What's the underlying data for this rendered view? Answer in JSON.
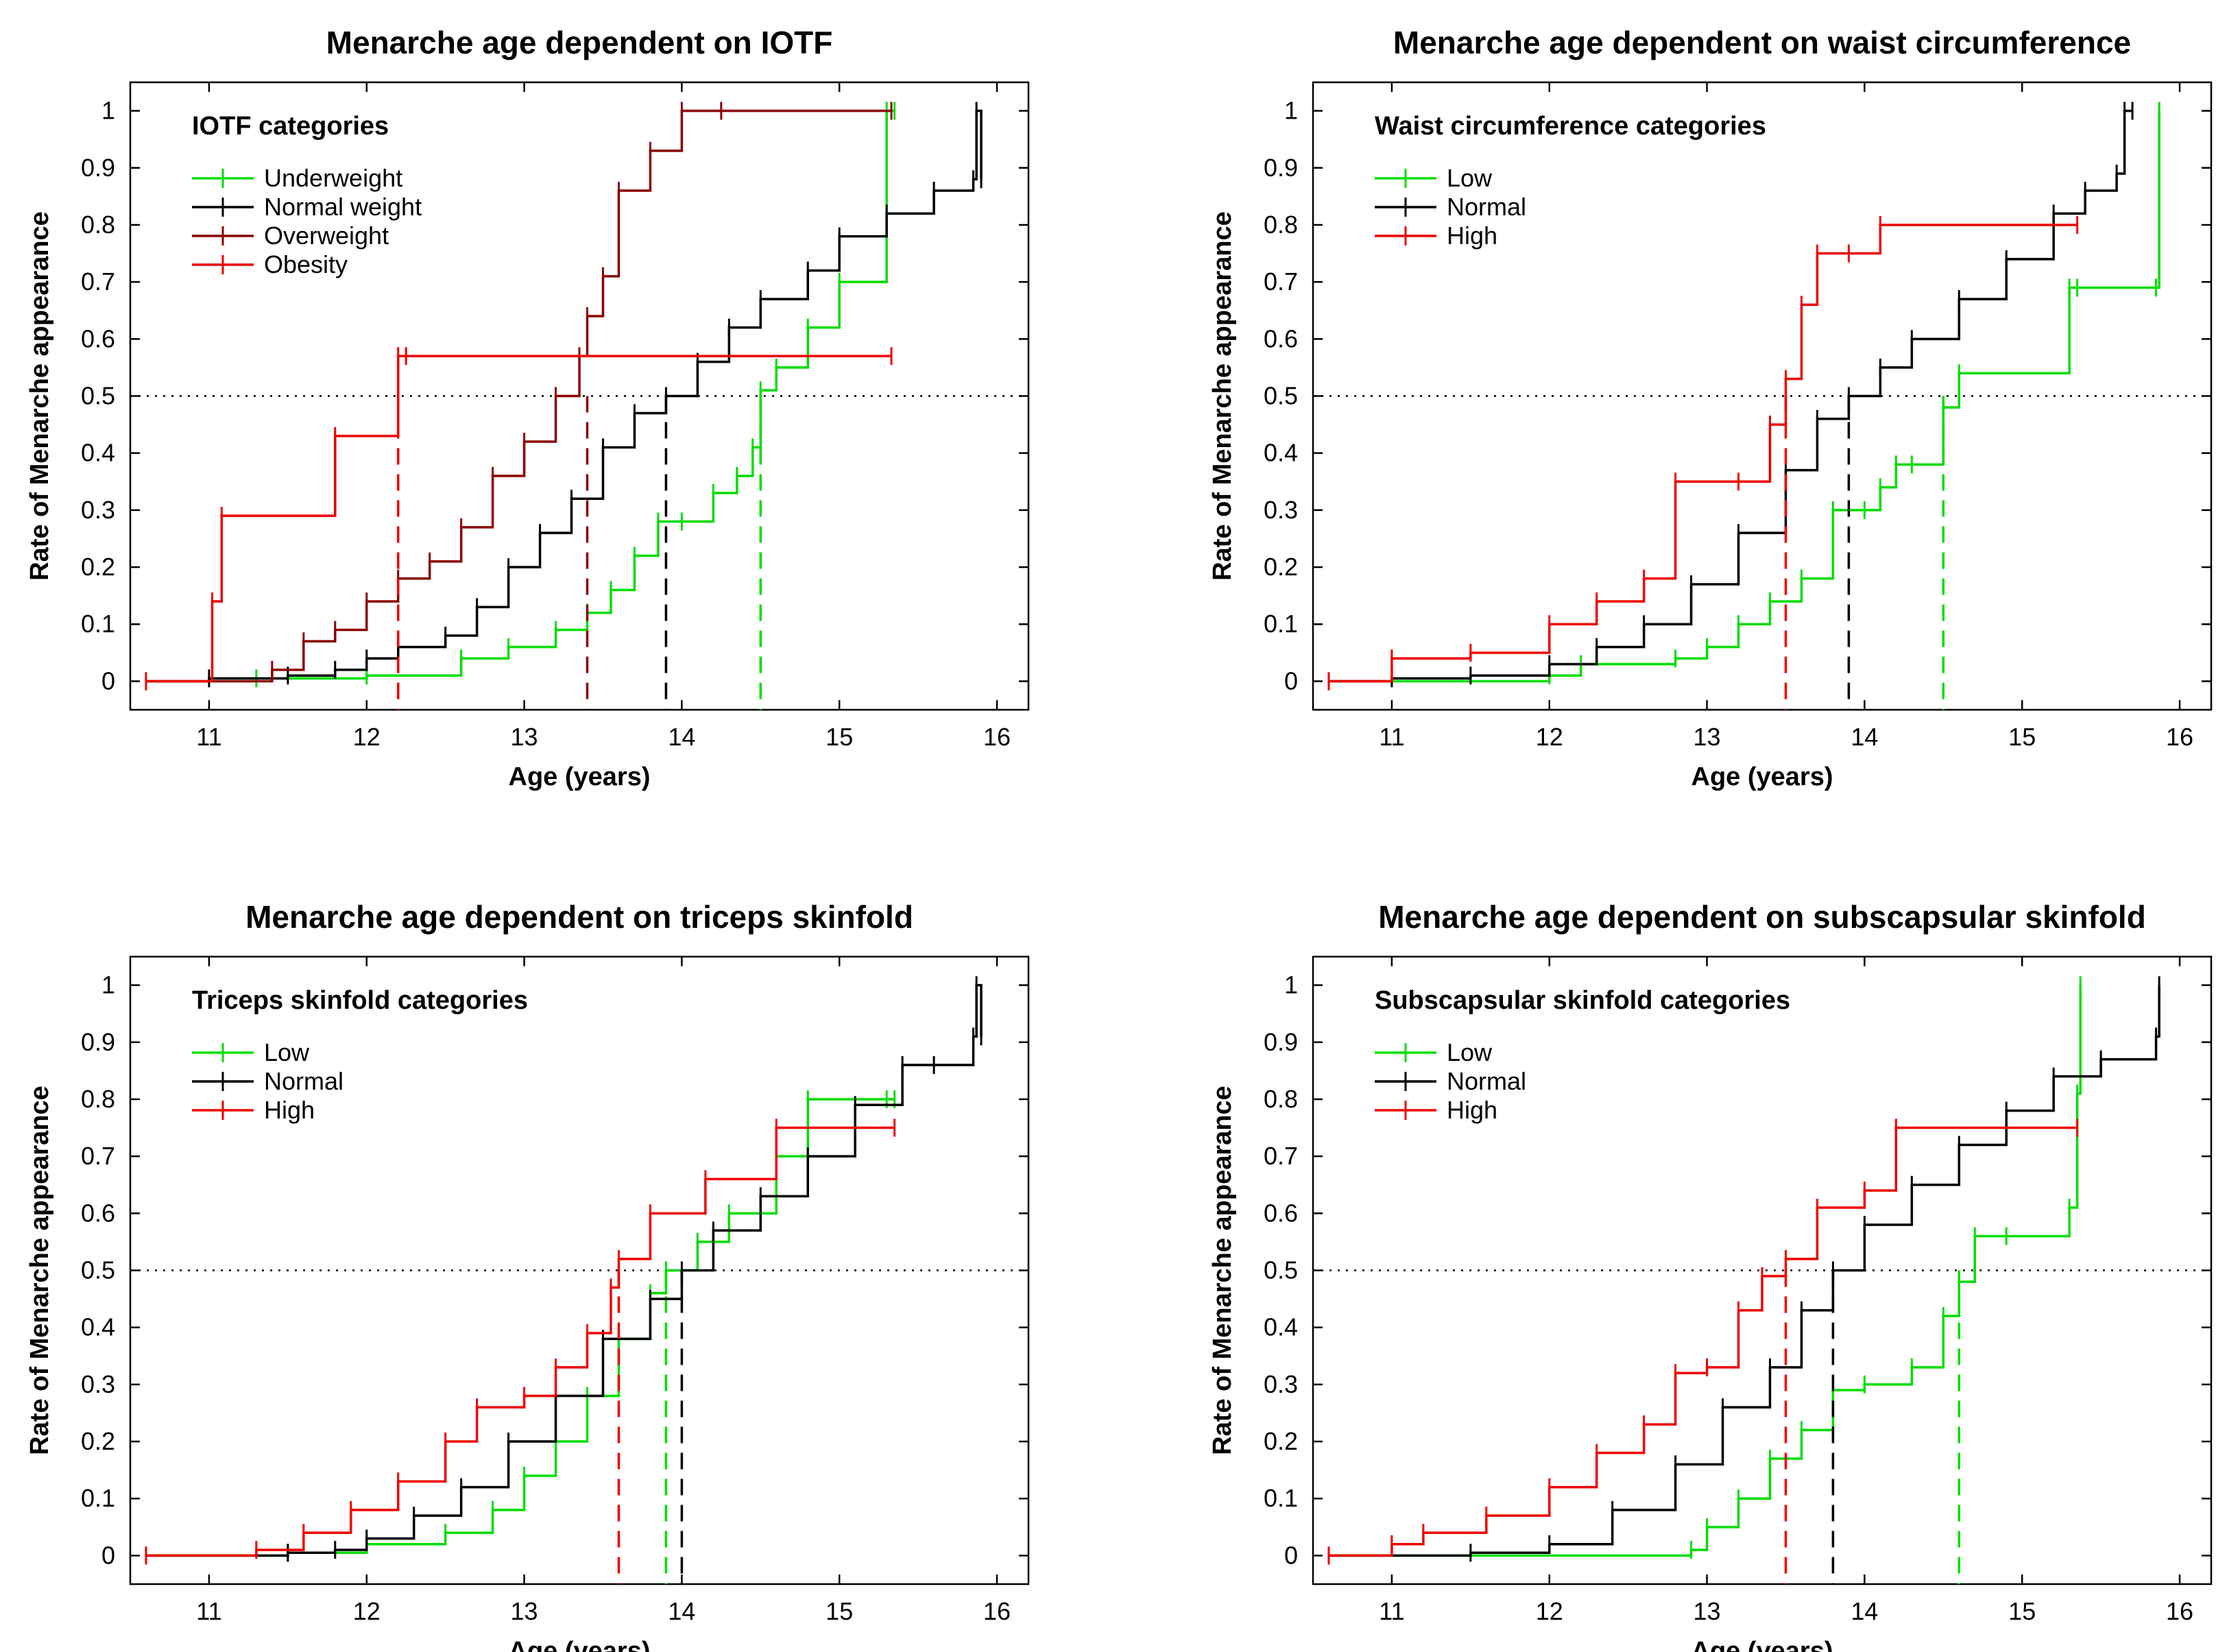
{
  "colors": {
    "low": "#00dd00",
    "normal": "#000000",
    "high": "#ee0000",
    "overweight": "#8b0000",
    "obesity": "#ee0000",
    "underweight": "#00dd00",
    "reference_line": "#000000"
  },
  "chart_data": [
    {
      "type": "line",
      "subtype": "kaplan-meier step curves",
      "title": "Menarche age dependent on IOTF",
      "xlabel": "Age (years)",
      "ylabel": "Rate of Menarche appearance",
      "xlim": [
        10.5,
        16.2
      ],
      "ylim": [
        -0.05,
        1.05
      ],
      "xticks": [
        11,
        12,
        13,
        14,
        15,
        16
      ],
      "xtick_labels": [
        "11",
        "12",
        "13",
        "14",
        "15",
        "16"
      ],
      "yticks": [
        0,
        0.1,
        0.2,
        0.3,
        0.4,
        0.5,
        0.6,
        0.7,
        0.8,
        0.9,
        1
      ],
      "ytick_labels": [
        "0",
        "0.1",
        "0.2",
        "0.3",
        "0.4",
        "0.5",
        "0.6",
        "0.7",
        "0.8",
        "0.9",
        "1"
      ],
      "reference_y": 0.5,
      "legend_title": "IOTF categories",
      "legend_position": "top-left",
      "series": [
        {
          "name": "Underweight",
          "color_key": "underweight",
          "median_age": 14.5,
          "x": [
            10.6,
            11.3,
            12.0,
            12.6,
            12.9,
            13.2,
            13.4,
            13.55,
            13.7,
            13.85,
            14.0,
            14.2,
            14.35,
            14.45,
            14.5,
            14.6,
            14.8,
            15.0,
            15.3,
            15.35
          ],
          "y": [
            0,
            0.005,
            0.01,
            0.04,
            0.06,
            0.09,
            0.12,
            0.16,
            0.22,
            0.28,
            0.28,
            0.33,
            0.36,
            0.41,
            0.51,
            0.55,
            0.62,
            0.7,
            1.0,
            1.0
          ]
        },
        {
          "name": "Normal weight",
          "color_key": "normal",
          "median_age": 13.9,
          "x": [
            10.6,
            11.0,
            11.5,
            11.8,
            12.0,
            12.2,
            12.5,
            12.7,
            12.9,
            13.1,
            13.3,
            13.5,
            13.7,
            13.9,
            14.1,
            14.3,
            14.5,
            14.8,
            15.0,
            15.3,
            15.6,
            15.85,
            15.87,
            15.9
          ],
          "y": [
            0,
            0.005,
            0.01,
            0.02,
            0.04,
            0.06,
            0.08,
            0.13,
            0.2,
            0.26,
            0.32,
            0.41,
            0.47,
            0.5,
            0.56,
            0.62,
            0.67,
            0.72,
            0.78,
            0.82,
            0.86,
            0.88,
            1.0,
            0.88
          ]
        },
        {
          "name": "Overweight",
          "color_key": "overweight",
          "median_age": 13.4,
          "x": [
            10.6,
            11.4,
            11.6,
            11.8,
            12.0,
            12.2,
            12.4,
            12.6,
            12.8,
            13.0,
            13.2,
            13.35,
            13.4,
            13.5,
            13.6,
            13.8,
            14.0,
            14.25,
            15.33
          ],
          "y": [
            0,
            0.02,
            0.07,
            0.09,
            0.14,
            0.18,
            0.21,
            0.27,
            0.36,
            0.42,
            0.5,
            0.57,
            0.64,
            0.71,
            0.86,
            0.93,
            1.0,
            1.0,
            1.0
          ]
        },
        {
          "name": "Obesity",
          "color_key": "obesity",
          "median_age": 12.2,
          "x": [
            10.6,
            11.02,
            11.08,
            11.8,
            12.2,
            12.25,
            15.33
          ],
          "y": [
            0,
            0.14,
            0.29,
            0.43,
            0.57,
            0.57,
            0.57
          ]
        }
      ]
    },
    {
      "type": "line",
      "subtype": "kaplan-meier step curves",
      "title": "Menarche age dependent on waist circumference",
      "xlabel": "Age (years)",
      "ylabel": "Rate of Menarche appearance",
      "xlim": [
        10.5,
        16.2
      ],
      "ylim": [
        -0.05,
        1.05
      ],
      "xticks": [
        11,
        12,
        13,
        14,
        15,
        16
      ],
      "xtick_labels": [
        "11",
        "12",
        "13",
        "14",
        "15",
        "16"
      ],
      "yticks": [
        0,
        0.1,
        0.2,
        0.3,
        0.4,
        0.5,
        0.6,
        0.7,
        0.8,
        0.9,
        1
      ],
      "ytick_labels": [
        "0",
        "0.1",
        "0.2",
        "0.3",
        "0.4",
        "0.5",
        "0.6",
        "0.7",
        "0.8",
        "0.9",
        "1"
      ],
      "reference_y": 0.5,
      "legend_title": "Waist circumference categories",
      "legend_position": "top-left",
      "series": [
        {
          "name": "Low",
          "color_key": "low",
          "median_age": 14.5,
          "x": [
            10.6,
            12.0,
            12.2,
            12.8,
            13.0,
            13.2,
            13.4,
            13.6,
            13.8,
            14.0,
            14.1,
            14.2,
            14.3,
            14.5,
            14.6,
            15.3,
            15.35,
            15.85,
            15.87
          ],
          "y": [
            0,
            0.01,
            0.03,
            0.04,
            0.06,
            0.1,
            0.14,
            0.18,
            0.3,
            0.3,
            0.34,
            0.38,
            0.38,
            0.48,
            0.54,
            0.69,
            0.69,
            0.69,
            1.0
          ]
        },
        {
          "name": "Normal",
          "color_key": "normal",
          "median_age": 13.9,
          "x": [
            10.6,
            11.0,
            11.5,
            12.0,
            12.3,
            12.6,
            12.9,
            13.2,
            13.5,
            13.7,
            13.9,
            14.1,
            14.3,
            14.6,
            14.9,
            15.2,
            15.4,
            15.6,
            15.65,
            15.7
          ],
          "y": [
            0,
            0.005,
            0.01,
            0.03,
            0.06,
            0.1,
            0.17,
            0.26,
            0.37,
            0.46,
            0.5,
            0.55,
            0.6,
            0.67,
            0.74,
            0.82,
            0.86,
            0.89,
            1.0,
            1.0
          ]
        },
        {
          "name": "High",
          "color_key": "high",
          "median_age": 13.5,
          "x": [
            10.6,
            11.0,
            11.5,
            12.0,
            12.3,
            12.6,
            12.8,
            13.2,
            13.4,
            13.5,
            13.6,
            13.7,
            13.9,
            14.1,
            15.35
          ],
          "y": [
            0,
            0.04,
            0.05,
            0.1,
            0.14,
            0.18,
            0.35,
            0.35,
            0.45,
            0.53,
            0.66,
            0.75,
            0.75,
            0.8,
            0.8
          ]
        }
      ]
    },
    {
      "type": "line",
      "subtype": "kaplan-meier step curves",
      "title": "Menarche age dependent on triceps skinfold",
      "xlabel": "Age (years)",
      "ylabel": "Rate of Menarche appearance",
      "xlim": [
        10.5,
        16.2
      ],
      "ylim": [
        -0.05,
        1.05
      ],
      "xticks": [
        11,
        12,
        13,
        14,
        15,
        16
      ],
      "xtick_labels": [
        "11",
        "12",
        "13",
        "14",
        "15",
        "16"
      ],
      "yticks": [
        0,
        0.1,
        0.2,
        0.3,
        0.4,
        0.5,
        0.6,
        0.7,
        0.8,
        0.9,
        1
      ],
      "ytick_labels": [
        "0",
        "0.1",
        "0.2",
        "0.3",
        "0.4",
        "0.5",
        "0.6",
        "0.7",
        "0.8",
        "0.9",
        "1"
      ],
      "reference_y": 0.5,
      "legend_title": "Triceps skinfold categories",
      "legend_position": "top-left",
      "series": [
        {
          "name": "Low",
          "color_key": "low",
          "median_age": 13.9,
          "x": [
            10.6,
            11.5,
            12.0,
            12.5,
            12.8,
            13.0,
            13.2,
            13.4,
            13.6,
            13.8,
            13.9,
            14.1,
            14.3,
            14.6,
            14.8,
            15.3,
            15.35
          ],
          "y": [
            0,
            0.005,
            0.02,
            0.04,
            0.08,
            0.14,
            0.2,
            0.28,
            0.38,
            0.46,
            0.5,
            0.55,
            0.6,
            0.7,
            0.8,
            0.8,
            0.8
          ]
        },
        {
          "name": "Normal",
          "color_key": "normal",
          "median_age": 14.0,
          "x": [
            10.6,
            11.5,
            11.8,
            12.0,
            12.3,
            12.6,
            12.9,
            13.2,
            13.5,
            13.8,
            14.0,
            14.2,
            14.5,
            14.8,
            15.1,
            15.4,
            15.6,
            15.85,
            15.87,
            15.9
          ],
          "y": [
            0,
            0.005,
            0.01,
            0.03,
            0.07,
            0.12,
            0.2,
            0.28,
            0.38,
            0.45,
            0.5,
            0.57,
            0.63,
            0.7,
            0.79,
            0.86,
            0.86,
            0.91,
            1.0,
            0.91
          ]
        },
        {
          "name": "High",
          "color_key": "high",
          "median_age": 13.6,
          "x": [
            10.6,
            11.3,
            11.6,
            11.9,
            12.2,
            12.5,
            12.7,
            13.0,
            13.2,
            13.4,
            13.55,
            13.6,
            13.8,
            14.15,
            14.6,
            15.35
          ],
          "y": [
            0,
            0.01,
            0.04,
            0.08,
            0.13,
            0.2,
            0.26,
            0.28,
            0.33,
            0.39,
            0.47,
            0.52,
            0.6,
            0.66,
            0.75,
            0.75
          ]
        }
      ]
    },
    {
      "type": "line",
      "subtype": "kaplan-meier step curves",
      "title": "Menarche age dependent on subscapsular skinfold",
      "xlabel": "Age (years)",
      "ylabel": "Rate of Menarche appearance",
      "xlim": [
        10.5,
        16.2
      ],
      "ylim": [
        -0.05,
        1.05
      ],
      "xticks": [
        11,
        12,
        13,
        14,
        15,
        16
      ],
      "xtick_labels": [
        "11",
        "12",
        "13",
        "14",
        "15",
        "16"
      ],
      "yticks": [
        0,
        0.1,
        0.2,
        0.3,
        0.4,
        0.5,
        0.6,
        0.7,
        0.8,
        0.9,
        1
      ],
      "ytick_labels": [
        "0",
        "0.1",
        "0.2",
        "0.3",
        "0.4",
        "0.5",
        "0.6",
        "0.7",
        "0.8",
        "0.9",
        "1"
      ],
      "reference_y": 0.5,
      "legend_title": "Subscapsular skinfold categories",
      "legend_position": "top-left",
      "series": [
        {
          "name": "Low",
          "color_key": "low",
          "median_age": 14.6,
          "x": [
            10.6,
            12.9,
            13.0,
            13.2,
            13.4,
            13.6,
            13.8,
            14.0,
            14.3,
            14.5,
            14.6,
            14.7,
            14.9,
            15.3,
            15.35,
            15.37
          ],
          "y": [
            0,
            0.01,
            0.05,
            0.1,
            0.17,
            0.22,
            0.29,
            0.3,
            0.33,
            0.42,
            0.48,
            0.56,
            0.56,
            0.61,
            0.81,
            1.0
          ]
        },
        {
          "name": "Normal",
          "color_key": "normal",
          "median_age": 13.8,
          "x": [
            10.6,
            11.5,
            12.0,
            12.4,
            12.8,
            13.1,
            13.4,
            13.6,
            13.8,
            14.0,
            14.3,
            14.6,
            14.9,
            15.2,
            15.5,
            15.85,
            15.87
          ],
          "y": [
            0,
            0.005,
            0.02,
            0.08,
            0.16,
            0.26,
            0.33,
            0.43,
            0.5,
            0.58,
            0.65,
            0.72,
            0.78,
            0.84,
            0.87,
            0.91,
            1.0
          ]
        },
        {
          "name": "High",
          "color_key": "high",
          "median_age": 13.5,
          "x": [
            10.6,
            11.0,
            11.2,
            11.6,
            12.0,
            12.3,
            12.6,
            12.8,
            13.0,
            13.2,
            13.35,
            13.5,
            13.7,
            14.0,
            14.2,
            15.35
          ],
          "y": [
            0,
            0.02,
            0.04,
            0.07,
            0.12,
            0.18,
            0.23,
            0.32,
            0.33,
            0.43,
            0.49,
            0.52,
            0.61,
            0.64,
            0.75,
            0.75
          ]
        }
      ]
    }
  ]
}
